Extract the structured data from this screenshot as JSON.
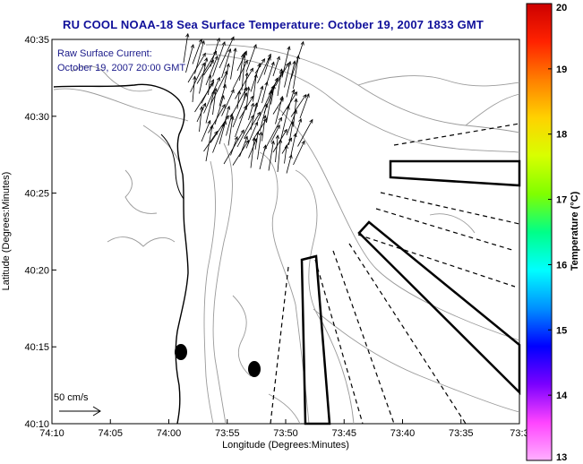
{
  "title": "RU COOL  NOAA-18  Sea Surface Temperature:  October 19, 2007 1833 GMT",
  "annotation": {
    "line1": "Raw Surface Current:",
    "line2": "October 19, 2007 20:00 GMT"
  },
  "scale_label": "50 cm/s",
  "x_axis": {
    "label": "Longitude (Degrees:Minutes)",
    "ticks": [
      "74:10",
      "74:05",
      "74:00",
      "73:55",
      "73:50",
      "73:45",
      "73:40",
      "73:35",
      "73:3"
    ]
  },
  "y_axis": {
    "label": "Latitude (Degrees:Minutes)",
    "ticks": [
      "40:35",
      "40:30",
      "40:25",
      "40:20",
      "40:15",
      "40:10"
    ]
  },
  "colorbar": {
    "label": "Temperature (°C)",
    "ticks": [
      "20",
      "19",
      "18",
      "17",
      "16",
      "15",
      "14",
      "13"
    ],
    "colors": [
      "#cc0000",
      "#ff2200",
      "#ff7f00",
      "#ffd200",
      "#d8ff00",
      "#7fff00",
      "#00ff88",
      "#00ffff",
      "#0090ff",
      "#0000ff",
      "#7a00ff",
      "#ff44ff",
      "#ffb0ff"
    ]
  }
}
